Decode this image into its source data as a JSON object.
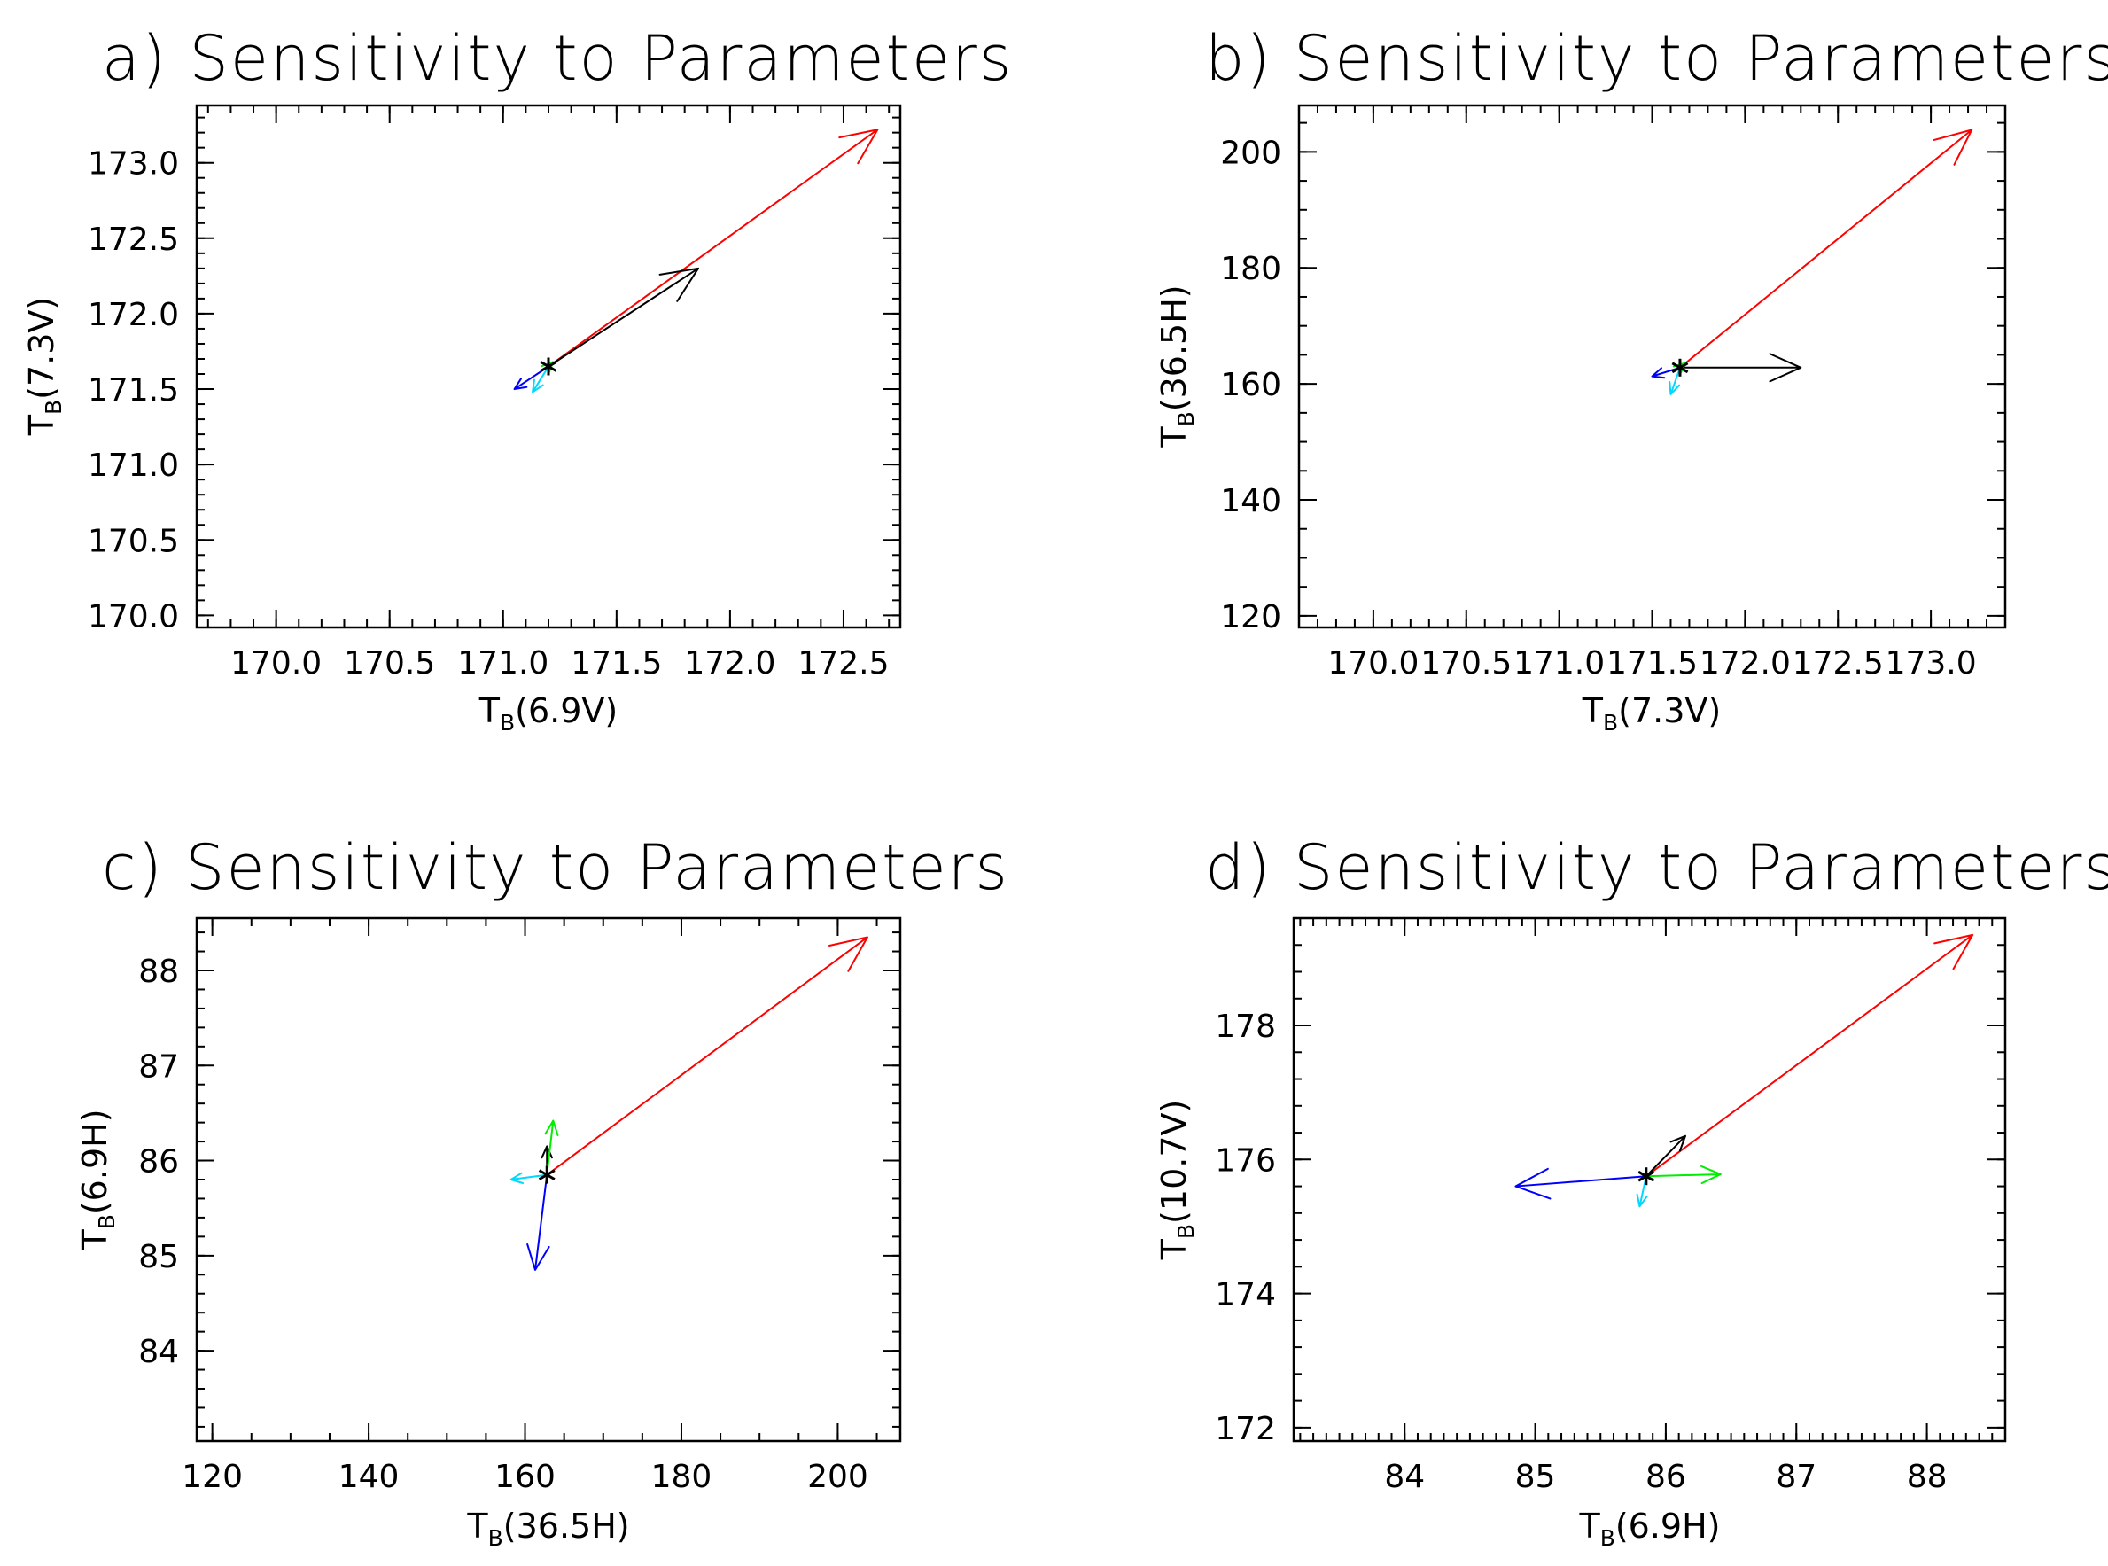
{
  "figure_title": "Sensitivity to Parameters",
  "colors": {
    "axes": "#000000",
    "background": "#ffffff"
  },
  "chart_data": [
    {
      "id": "a",
      "type": "scatter",
      "title": "a) Sensitivity to Parameters",
      "x_axis": {
        "sym": "T",
        "sub": "B",
        "label": "(6.9V)",
        "range": [
          169.65,
          172.75
        ],
        "major_ticks": [
          170.0,
          170.5,
          171.0,
          171.5,
          172.0,
          172.5
        ],
        "tick_labels": [
          "170.0",
          "170.5",
          "171.0",
          "171.5",
          "172.0",
          "172.5"
        ],
        "minor_step": 0.1
      },
      "y_axis": {
        "sym": "T",
        "sub": "B",
        "label": "(7.3V)",
        "range": [
          169.92,
          173.38
        ],
        "major_ticks": [
          170.0,
          170.5,
          171.0,
          171.5,
          172.0,
          172.5,
          173.0
        ],
        "tick_labels": [
          "170.0",
          "170.5",
          "171.0",
          "171.5",
          "172.0",
          "172.5",
          "173.0"
        ],
        "minor_step": 0.1
      },
      "point": {
        "x": 171.2,
        "y": 171.65
      },
      "vectors": [
        {
          "color": "#ff0000",
          "x": 172.65,
          "y": 173.22
        },
        {
          "color": "#000000",
          "x": 171.86,
          "y": 172.3
        },
        {
          "color": "#0000ff",
          "x": 171.05,
          "y": 171.5
        },
        {
          "color": "#00ee00",
          "x": 171.22,
          "y": 171.68
        },
        {
          "color": "#00d8ff",
          "x": 171.13,
          "y": 171.48
        }
      ]
    },
    {
      "id": "b",
      "type": "scatter",
      "title": "b) Sensitivity to Parameters",
      "x_axis": {
        "sym": "T",
        "sub": "B",
        "label": "(7.3V)",
        "range": [
          169.6,
          173.4
        ],
        "major_ticks": [
          170.0,
          170.5,
          171.0,
          171.5,
          172.0,
          172.5,
          173.0
        ],
        "tick_labels": [
          "170.0",
          "170.5",
          "171.0",
          "171.5",
          "172.0",
          "172.5",
          "173.0"
        ],
        "minor_step": 0.1
      },
      "y_axis": {
        "sym": "T",
        "sub": "B",
        "label": "(36.5H)",
        "range": [
          118,
          208
        ],
        "major_ticks": [
          120,
          140,
          160,
          180,
          200
        ],
        "tick_labels": [
          "120",
          "140",
          "160",
          "180",
          "200"
        ],
        "minor_step": 5
      },
      "point": {
        "x": 171.65,
        "y": 162.8
      },
      "vectors": [
        {
          "color": "#ff0000",
          "x": 173.22,
          "y": 203.8
        },
        {
          "color": "#000000",
          "x": 172.3,
          "y": 162.8
        },
        {
          "color": "#0000ff",
          "x": 171.5,
          "y": 161.3
        },
        {
          "color": "#00ee00",
          "x": 171.68,
          "y": 163.6
        },
        {
          "color": "#00d8ff",
          "x": 171.6,
          "y": 158.2
        }
      ]
    },
    {
      "id": "c",
      "type": "scatter",
      "title": "c) Sensitivity to Parameters",
      "x_axis": {
        "sym": "T",
        "sub": "B",
        "label": "(36.5H)",
        "range": [
          118,
          208
        ],
        "major_ticks": [
          120,
          140,
          160,
          180,
          200
        ],
        "tick_labels": [
          "120",
          "140",
          "160",
          "180",
          "200"
        ],
        "minor_step": 5
      },
      "y_axis": {
        "sym": "T",
        "sub": "B",
        "label": "(6.9H)",
        "range": [
          83.05,
          88.55
        ],
        "major_ticks": [
          84,
          85,
          86,
          87,
          88
        ],
        "tick_labels": [
          "84",
          "85",
          "86",
          "87",
          "88"
        ],
        "minor_step": 0.2
      },
      "point": {
        "x": 162.8,
        "y": 85.85
      },
      "vectors": [
        {
          "color": "#ff0000",
          "x": 203.8,
          "y": 88.35
        },
        {
          "color": "#000000",
          "x": 162.8,
          "y": 86.15
        },
        {
          "color": "#0000ff",
          "x": 161.3,
          "y": 84.85
        },
        {
          "color": "#00ee00",
          "x": 163.6,
          "y": 86.42
        },
        {
          "color": "#00d8ff",
          "x": 158.2,
          "y": 85.8
        }
      ]
    },
    {
      "id": "d",
      "type": "scatter",
      "title": "d) Sensitivity to Parameters",
      "x_axis": {
        "sym": "T",
        "sub": "B",
        "label": "(6.9H)",
        "range": [
          83.15,
          88.6
        ],
        "major_ticks": [
          84,
          85,
          86,
          87,
          88
        ],
        "tick_labels": [
          "84",
          "85",
          "86",
          "87",
          "88"
        ],
        "minor_step": 0.1
      },
      "y_axis": {
        "sym": "T",
        "sub": "B",
        "label": "(10.7V)",
        "range": [
          171.8,
          179.6
        ],
        "major_ticks": [
          172,
          174,
          176,
          178
        ],
        "tick_labels": [
          "172",
          "174",
          "176",
          "178"
        ],
        "minor_step": 0.4
      },
      "point": {
        "x": 85.85,
        "y": 175.75
      },
      "vectors": [
        {
          "color": "#ff0000",
          "x": 88.35,
          "y": 179.35
        },
        {
          "color": "#000000",
          "x": 86.15,
          "y": 176.35
        },
        {
          "color": "#0000ff",
          "x": 84.85,
          "y": 175.6
        },
        {
          "color": "#00ee00",
          "x": 86.42,
          "y": 175.78
        },
        {
          "color": "#00d8ff",
          "x": 85.8,
          "y": 175.3
        }
      ]
    }
  ]
}
